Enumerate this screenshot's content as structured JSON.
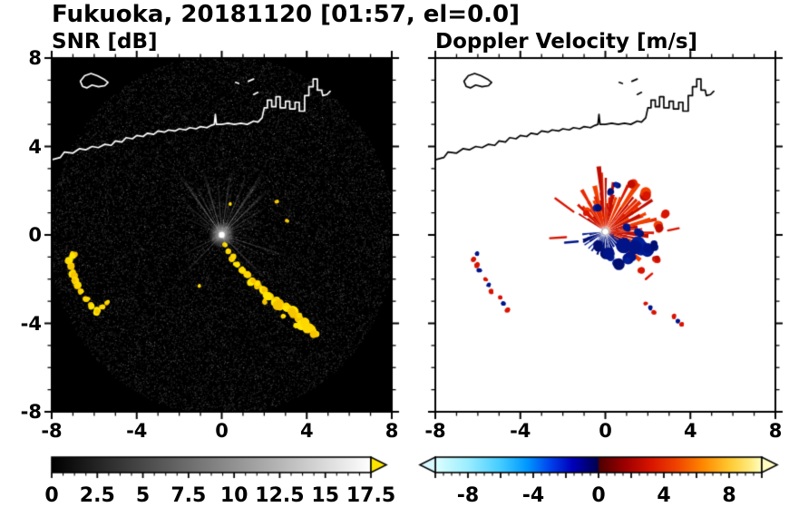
{
  "title": "Fukuoka, 20181120 [01:57, el=0.0]",
  "panels": {
    "snr": {
      "title": "SNR [dB]"
    },
    "velocity": {
      "title": "Doppler Velocity [m/s]"
    }
  },
  "axes": {
    "range": [
      -8,
      8
    ],
    "major_ticks": [
      -8,
      -4,
      0,
      4,
      8
    ],
    "major_tick_labels": [
      "-8",
      "-4",
      "0",
      "4",
      "8"
    ],
    "minor_step": 1
  },
  "colorbars": {
    "snr": {
      "min": 0,
      "max": 17.5,
      "tick_values": [
        0,
        2.5,
        5,
        7.5,
        10,
        12.5,
        15,
        17.5
      ],
      "tick_labels": [
        "0",
        "2.5",
        "5",
        "7.5",
        "10",
        "12.5",
        "15",
        "17.5"
      ],
      "minor_step": 0.625,
      "major_step": 2.5,
      "stops": [
        [
          0,
          "#000000"
        ],
        [
          1,
          "#ffffff"
        ]
      ],
      "over_color": "#ffe600"
    },
    "velocity": {
      "min": -10,
      "max": 10,
      "tick_values": [
        -8,
        -4,
        0,
        4,
        8
      ],
      "tick_labels": [
        "-8",
        "-4",
        "0",
        "4",
        "8"
      ],
      "minor_step": 0.5,
      "major_step": 2,
      "stops": [
        [
          0,
          "#dcffff"
        ],
        [
          0.1,
          "#9beeff"
        ],
        [
          0.2,
          "#44ccff"
        ],
        [
          0.28,
          "#0099ff"
        ],
        [
          0.35,
          "#0044ee"
        ],
        [
          0.42,
          "#0000bb"
        ],
        [
          0.497,
          "#000050"
        ],
        [
          0.503,
          "#500000"
        ],
        [
          0.58,
          "#9c0000"
        ],
        [
          0.66,
          "#d81400"
        ],
        [
          0.74,
          "#f04400"
        ],
        [
          0.82,
          "#ff8800"
        ],
        [
          0.9,
          "#ffc830"
        ],
        [
          0.96,
          "#ffe878"
        ],
        [
          1,
          "#ffffc0"
        ]
      ],
      "under_color": "#d8f8ff",
      "over_color": "#ffffc0"
    }
  },
  "coastline": {
    "main": [
      [
        -8,
        3.4
      ],
      [
        -7.6,
        3.5
      ],
      [
        -7.4,
        3.75
      ],
      [
        -7.0,
        3.7
      ],
      [
        -6.7,
        3.9
      ],
      [
        -6.4,
        3.85
      ],
      [
        -6.1,
        4.0
      ],
      [
        -5.8,
        3.95
      ],
      [
        -5.5,
        4.1
      ],
      [
        -5.2,
        4.05
      ],
      [
        -5.0,
        4.25
      ],
      [
        -4.7,
        4.2
      ],
      [
        -4.5,
        4.4
      ],
      [
        -4.2,
        4.35
      ],
      [
        -4.0,
        4.5
      ],
      [
        -3.7,
        4.45
      ],
      [
        -3.5,
        4.6
      ],
      [
        -3.2,
        4.55
      ],
      [
        -3.0,
        4.7
      ],
      [
        -2.7,
        4.65
      ],
      [
        -2.5,
        4.75
      ],
      [
        -2.2,
        4.7
      ],
      [
        -2.0,
        4.8
      ],
      [
        -1.7,
        4.75
      ],
      [
        -1.5,
        4.85
      ],
      [
        -1.2,
        4.8
      ],
      [
        -1.0,
        4.9
      ],
      [
        -0.7,
        4.85
      ],
      [
        -0.5,
        4.95
      ],
      [
        -0.35,
        5.0
      ],
      [
        -0.3,
        5.45
      ],
      [
        -0.25,
        5.0
      ],
      [
        0.0,
        5.0
      ],
      [
        0.3,
        5.05
      ],
      [
        0.6,
        5.0
      ],
      [
        0.9,
        5.05
      ],
      [
        1.2,
        5.0
      ],
      [
        1.5,
        5.15
      ],
      [
        1.7,
        5.1
      ],
      [
        1.9,
        5.3
      ],
      [
        2.0,
        5.75
      ],
      [
        2.15,
        5.75
      ],
      [
        2.15,
        6.1
      ],
      [
        2.35,
        6.1
      ],
      [
        2.35,
        5.8
      ],
      [
        2.55,
        5.8
      ],
      [
        2.55,
        6.25
      ],
      [
        2.75,
        6.25
      ],
      [
        2.75,
        5.75
      ],
      [
        3.0,
        5.75
      ],
      [
        3.0,
        6.05
      ],
      [
        3.2,
        6.05
      ],
      [
        3.2,
        5.7
      ],
      [
        3.45,
        5.7
      ],
      [
        3.45,
        6.0
      ],
      [
        3.65,
        6.0
      ],
      [
        3.65,
        5.6
      ],
      [
        3.9,
        5.6
      ],
      [
        3.9,
        6.3
      ],
      [
        4.1,
        6.3
      ],
      [
        4.1,
        6.7
      ],
      [
        4.3,
        6.7
      ],
      [
        4.3,
        7.05
      ],
      [
        4.5,
        7.05
      ],
      [
        4.5,
        6.55
      ],
      [
        4.7,
        6.55
      ],
      [
        4.75,
        6.3
      ],
      [
        4.95,
        6.35
      ],
      [
        5.1,
        6.5
      ]
    ],
    "island": [
      [
        -6.65,
        6.95
      ],
      [
        -6.45,
        7.2
      ],
      [
        -6.15,
        7.3
      ],
      [
        -5.85,
        7.2
      ],
      [
        -5.55,
        7.05
      ],
      [
        -5.35,
        6.9
      ],
      [
        -5.5,
        6.75
      ],
      [
        -5.8,
        6.7
      ],
      [
        -6.1,
        6.78
      ],
      [
        -6.35,
        6.65
      ],
      [
        -6.55,
        6.72
      ]
    ],
    "marks": [
      [
        1.25,
        6.95,
        1.5,
        7.05
      ],
      [
        1.5,
        6.35,
        1.7,
        6.45
      ],
      [
        0.65,
        6.9,
        0.8,
        6.85
      ]
    ]
  },
  "chart_data": [
    {
      "type": "heatmap",
      "name": "snr",
      "title": "SNR [dB]",
      "units": "dB",
      "xlim": [
        -8,
        8
      ],
      "ylim": [
        -8,
        8
      ],
      "background": "#000000",
      "colorbar_range": [
        0,
        17.5
      ],
      "radar_center": [
        0,
        0
      ],
      "noise_radius": 8.15,
      "rays": [
        [
          8,
          1.4,
          0.8,
          0.4
        ],
        [
          15,
          2.0,
          1.0,
          0.5
        ],
        [
          25,
          1.8,
          1.5,
          0.5
        ],
        [
          32,
          2.6,
          1.2,
          0.6
        ],
        [
          38,
          1.5,
          1.0,
          0.45
        ],
        [
          44,
          3.2,
          1.4,
          0.7
        ],
        [
          50,
          2.2,
          1.2,
          0.55
        ],
        [
          56,
          3.6,
          1.5,
          0.75
        ],
        [
          62,
          2.0,
          1.0,
          0.5
        ],
        [
          67,
          2.9,
          1.2,
          0.6
        ],
        [
          72,
          1.6,
          0.9,
          0.45
        ],
        [
          77,
          2.4,
          1.1,
          0.55
        ],
        [
          82,
          3.1,
          1.3,
          0.65
        ],
        [
          88,
          1.8,
          1.0,
          0.5
        ],
        [
          94,
          2.7,
          1.2,
          0.6
        ],
        [
          100,
          1.5,
          0.9,
          0.4
        ],
        [
          106,
          3.3,
          1.4,
          0.7
        ],
        [
          112,
          2.1,
          1.1,
          0.5
        ],
        [
          118,
          2.8,
          1.2,
          0.6
        ],
        [
          125,
          3.5,
          1.5,
          0.75
        ],
        [
          132,
          1.9,
          1.0,
          0.5
        ],
        [
          139,
          2.5,
          1.2,
          0.55
        ],
        [
          147,
          1.6,
          0.9,
          0.45
        ],
        [
          155,
          2.2,
          1.1,
          0.5
        ],
        [
          163,
          1.3,
          0.8,
          0.35
        ],
        [
          172,
          1.1,
          0.7,
          0.3
        ],
        [
          198,
          1.4,
          0.9,
          0.35
        ],
        [
          207,
          2.3,
          1.2,
          0.5
        ],
        [
          216,
          1.7,
          1.0,
          0.4
        ],
        [
          226,
          2.6,
          1.3,
          0.55
        ],
        [
          236,
          1.4,
          0.9,
          0.35
        ],
        [
          288,
          1.5,
          0.9,
          0.4
        ],
        [
          297,
          2.4,
          1.2,
          0.55
        ],
        [
          306,
          1.8,
          1.0,
          0.45
        ],
        [
          315,
          2.9,
          1.3,
          0.6
        ],
        [
          324,
          1.6,
          0.9,
          0.4
        ],
        [
          333,
          2.2,
          1.1,
          0.5
        ],
        [
          342,
          3.4,
          1.0,
          0.6
        ],
        [
          352,
          1.9,
          0.9,
          0.45
        ]
      ],
      "strong_echoes_yellow": [
        [
          -7.0,
          -0.9,
          0.18
        ],
        [
          -7.2,
          -1.15,
          0.2
        ],
        [
          -7.1,
          -1.45,
          0.22
        ],
        [
          -6.95,
          -1.75,
          0.2
        ],
        [
          -6.9,
          -2.05,
          0.22
        ],
        [
          -6.8,
          -2.3,
          0.2
        ],
        [
          -6.6,
          -2.55,
          0.18
        ],
        [
          -6.35,
          -2.9,
          0.15
        ],
        [
          -6.15,
          -3.2,
          0.18
        ],
        [
          -5.9,
          -3.45,
          0.2
        ],
        [
          -5.6,
          -3.25,
          0.16
        ],
        [
          -5.4,
          -3.05,
          0.13
        ],
        [
          0.15,
          -0.45,
          0.12
        ],
        [
          0.3,
          -0.75,
          0.15
        ],
        [
          0.5,
          -1.05,
          0.17
        ],
        [
          0.7,
          -1.35,
          0.18
        ],
        [
          0.95,
          -1.6,
          0.2
        ],
        [
          1.2,
          -1.85,
          0.2
        ],
        [
          1.45,
          -2.1,
          0.22
        ],
        [
          1.7,
          -2.3,
          0.2
        ],
        [
          1.95,
          -2.5,
          0.22
        ],
        [
          2.2,
          -2.75,
          0.24
        ],
        [
          2.0,
          -3.0,
          0.14
        ],
        [
          2.5,
          -2.95,
          0.2
        ],
        [
          2.75,
          -3.15,
          0.26
        ],
        [
          3.05,
          -3.3,
          0.22
        ],
        [
          3.3,
          -3.5,
          0.28
        ],
        [
          3.6,
          -3.75,
          0.24
        ],
        [
          3.85,
          -4.0,
          0.3
        ],
        [
          4.15,
          -4.2,
          0.26
        ],
        [
          4.35,
          -4.45,
          0.2
        ],
        [
          3.5,
          -4.1,
          0.15
        ],
        [
          2.9,
          -3.7,
          0.14
        ],
        [
          2.6,
          1.5,
          0.1
        ],
        [
          3.05,
          0.65,
          0.09
        ],
        [
          0.4,
          1.4,
          0.07
        ],
        [
          -1.05,
          -2.3,
          0.08
        ]
      ]
    },
    {
      "type": "heatmap",
      "name": "doppler_velocity",
      "title": "Doppler Velocity [m/s]",
      "units": "m/s",
      "xlim": [
        -8,
        8
      ],
      "ylim": [
        -8,
        8
      ],
      "background": "#ffffff",
      "colorbar_range": [
        -10,
        10
      ],
      "radar_center": [
        0,
        0.15
      ],
      "fan": {
        "center": [
          0,
          0.15
        ],
        "red": {
          "angles": [
            -38,
            148
          ],
          "count": 64,
          "length": [
            0.6,
            2.3
          ],
          "boost": [
            10,
            100,
            1.35
          ]
        },
        "blue": {
          "angles": [
            188,
            338
          ],
          "count": 34,
          "length": [
            0.35,
            1.25
          ]
        },
        "blue_patches": [
          [
            0.85,
            -0.55,
            0.45
          ],
          [
            1.5,
            -0.5,
            0.4
          ],
          [
            1.95,
            -0.75,
            0.3
          ],
          [
            0.15,
            -0.85,
            0.38
          ],
          [
            -0.3,
            -0.55,
            0.28
          ],
          [
            0.55,
            -1.25,
            0.32
          ],
          [
            1.15,
            -1.05,
            0.3
          ],
          [
            2.3,
            -0.5,
            0.22
          ],
          [
            0.2,
            1.95,
            0.2
          ],
          [
            0.55,
            2.25,
            0.16
          ],
          [
            -0.35,
            1.25,
            0.18
          ],
          [
            1.0,
            0.35,
            0.22
          ],
          [
            1.55,
            0.1,
            0.2
          ]
        ],
        "red_patches": [
          [
            2.5,
            0.35,
            0.28
          ],
          [
            2.75,
            0.95,
            0.22
          ],
          [
            1.95,
            1.85,
            0.28
          ],
          [
            1.25,
            2.3,
            0.22
          ],
          [
            -0.85,
            1.05,
            0.16
          ],
          [
            2.45,
            -1.1,
            0.2
          ],
          [
            1.7,
            -1.6,
            0.18
          ]
        ],
        "red_streaks": [
          [
            -2.6,
            -0.15,
            -1.85,
            -0.1
          ],
          [
            -2.35,
            1.65,
            -1.5,
            1.05
          ],
          [
            2.95,
            0.2,
            3.45,
            0.3
          ],
          [
            1.9,
            -2.0,
            2.2,
            -1.75
          ]
        ],
        "blue_streaks": [
          [
            -1.9,
            -0.35,
            -1.3,
            -0.3
          ]
        ]
      },
      "specks": [
        [
          -6.05,
          -0.85,
          "b"
        ],
        [
          -6.2,
          -1.1,
          "r"
        ],
        [
          -6.05,
          -1.35,
          "r"
        ],
        [
          -5.9,
          -1.6,
          "b"
        ],
        [
          -5.65,
          -2.0,
          "r"
        ],
        [
          -5.5,
          -2.25,
          "b"
        ],
        [
          -5.35,
          -2.55,
          "r"
        ],
        [
          -4.95,
          -2.85,
          "r"
        ],
        [
          -4.8,
          -3.1,
          "b"
        ],
        [
          -4.6,
          -3.4,
          "r"
        ],
        [
          1.9,
          -3.1,
          "r"
        ],
        [
          2.1,
          -3.3,
          "b"
        ],
        [
          2.3,
          -3.5,
          "r"
        ],
        [
          3.2,
          -3.7,
          "r"
        ],
        [
          3.4,
          -3.9,
          "b"
        ],
        [
          3.6,
          -4.05,
          "r"
        ]
      ]
    }
  ]
}
